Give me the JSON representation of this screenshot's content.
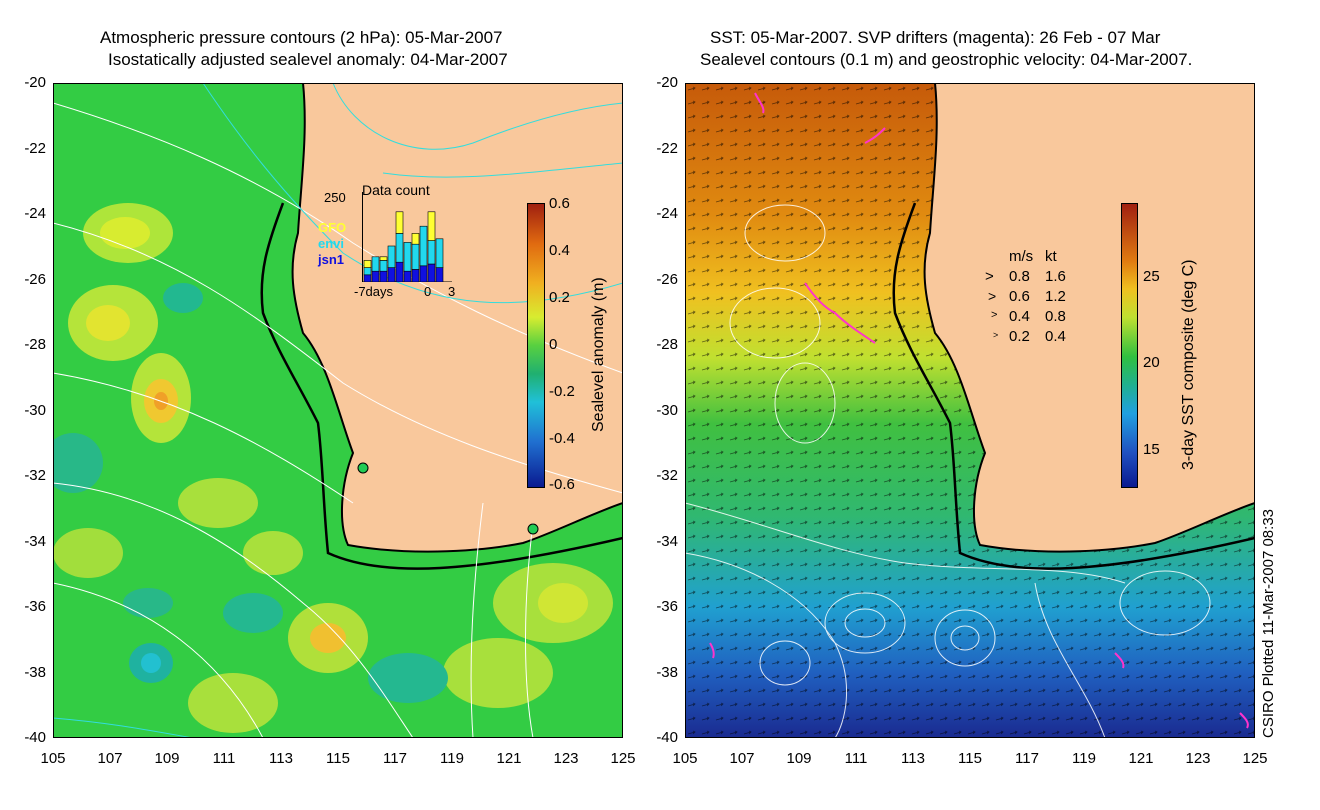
{
  "left_panel": {
    "title_line1": "Atmospheric pressure contours (2 hPa): 05-Mar-2007",
    "title_line2": "Isostatically adjusted sealevel anomaly: 04-Mar-2007",
    "colorbar": {
      "label": "Sealevel anomaly (m)",
      "ticks": [
        "0.6",
        "0.4",
        "0.2",
        "0",
        "-0.2",
        "-0.4",
        "-0.6"
      ]
    },
    "inset": {
      "title": "Data count",
      "ymax_label": "250",
      "legend": [
        {
          "name": "GFO",
          "color": "#ffff33"
        },
        {
          "name": "envi",
          "color": "#22d8ee"
        },
        {
          "name": "jsn1",
          "color": "#1010e0"
        }
      ],
      "x_label_left": "-7days",
      "x_label_zero": "0",
      "x_label_right": "3",
      "bars": [
        {
          "jsn1": 20,
          "envi": 20,
          "gfo": 20
        },
        {
          "jsn1": 30,
          "envi": 40,
          "gfo": 0
        },
        {
          "jsn1": 30,
          "envi": 30,
          "gfo": 10
        },
        {
          "jsn1": 40,
          "envi": 60,
          "gfo": 0
        },
        {
          "jsn1": 55,
          "envi": 80,
          "gfo": 60
        },
        {
          "jsn1": 30,
          "envi": 80,
          "gfo": 0
        },
        {
          "jsn1": 35,
          "envi": 70,
          "gfo": 30
        },
        {
          "jsn1": 45,
          "envi": 110,
          "gfo": 0
        },
        {
          "jsn1": 50,
          "envi": 65,
          "gfo": 80
        },
        {
          "jsn1": 40,
          "envi": 80,
          "gfo": 0
        }
      ]
    }
  },
  "right_panel": {
    "title_line1": "SST: 05-Mar-2007. SVP drifters (magenta): 26 Feb - 07 Mar",
    "title_line2": "Sealevel contours (0.1 m) and geostrophic velocity: 04-Mar-2007.",
    "colorbar": {
      "label": "3-day SST composite (deg C)",
      "ticks": [
        "25",
        "20",
        "15"
      ]
    },
    "speed_legend": {
      "header_ms": "m/s",
      "header_kt": "kt",
      "rows": [
        {
          "ms": "0.8",
          "kt": "1.6"
        },
        {
          "ms": "0.6",
          "kt": "1.2"
        },
        {
          "ms": "0.4",
          "kt": "0.8"
        },
        {
          "ms": "0.2",
          "kt": "0.4"
        }
      ]
    }
  },
  "axes": {
    "y_ticks": [
      "-20",
      "-22",
      "-24",
      "-26",
      "-28",
      "-30",
      "-32",
      "-34",
      "-36",
      "-38",
      "-40"
    ],
    "x_ticks": [
      "105",
      "107",
      "109",
      "111",
      "113",
      "115",
      "117",
      "119",
      "121",
      "123",
      "125"
    ]
  },
  "footer_credit": "CSIRO Plotted 11-Mar-2007 08:33",
  "colors": {
    "land": "#f9c89c",
    "ocean_anomaly_base": "#33cc44",
    "sst_warm": "#c65a0a",
    "sst_cold": "#1e4fb8",
    "drifter": "#ff33cc"
  }
}
